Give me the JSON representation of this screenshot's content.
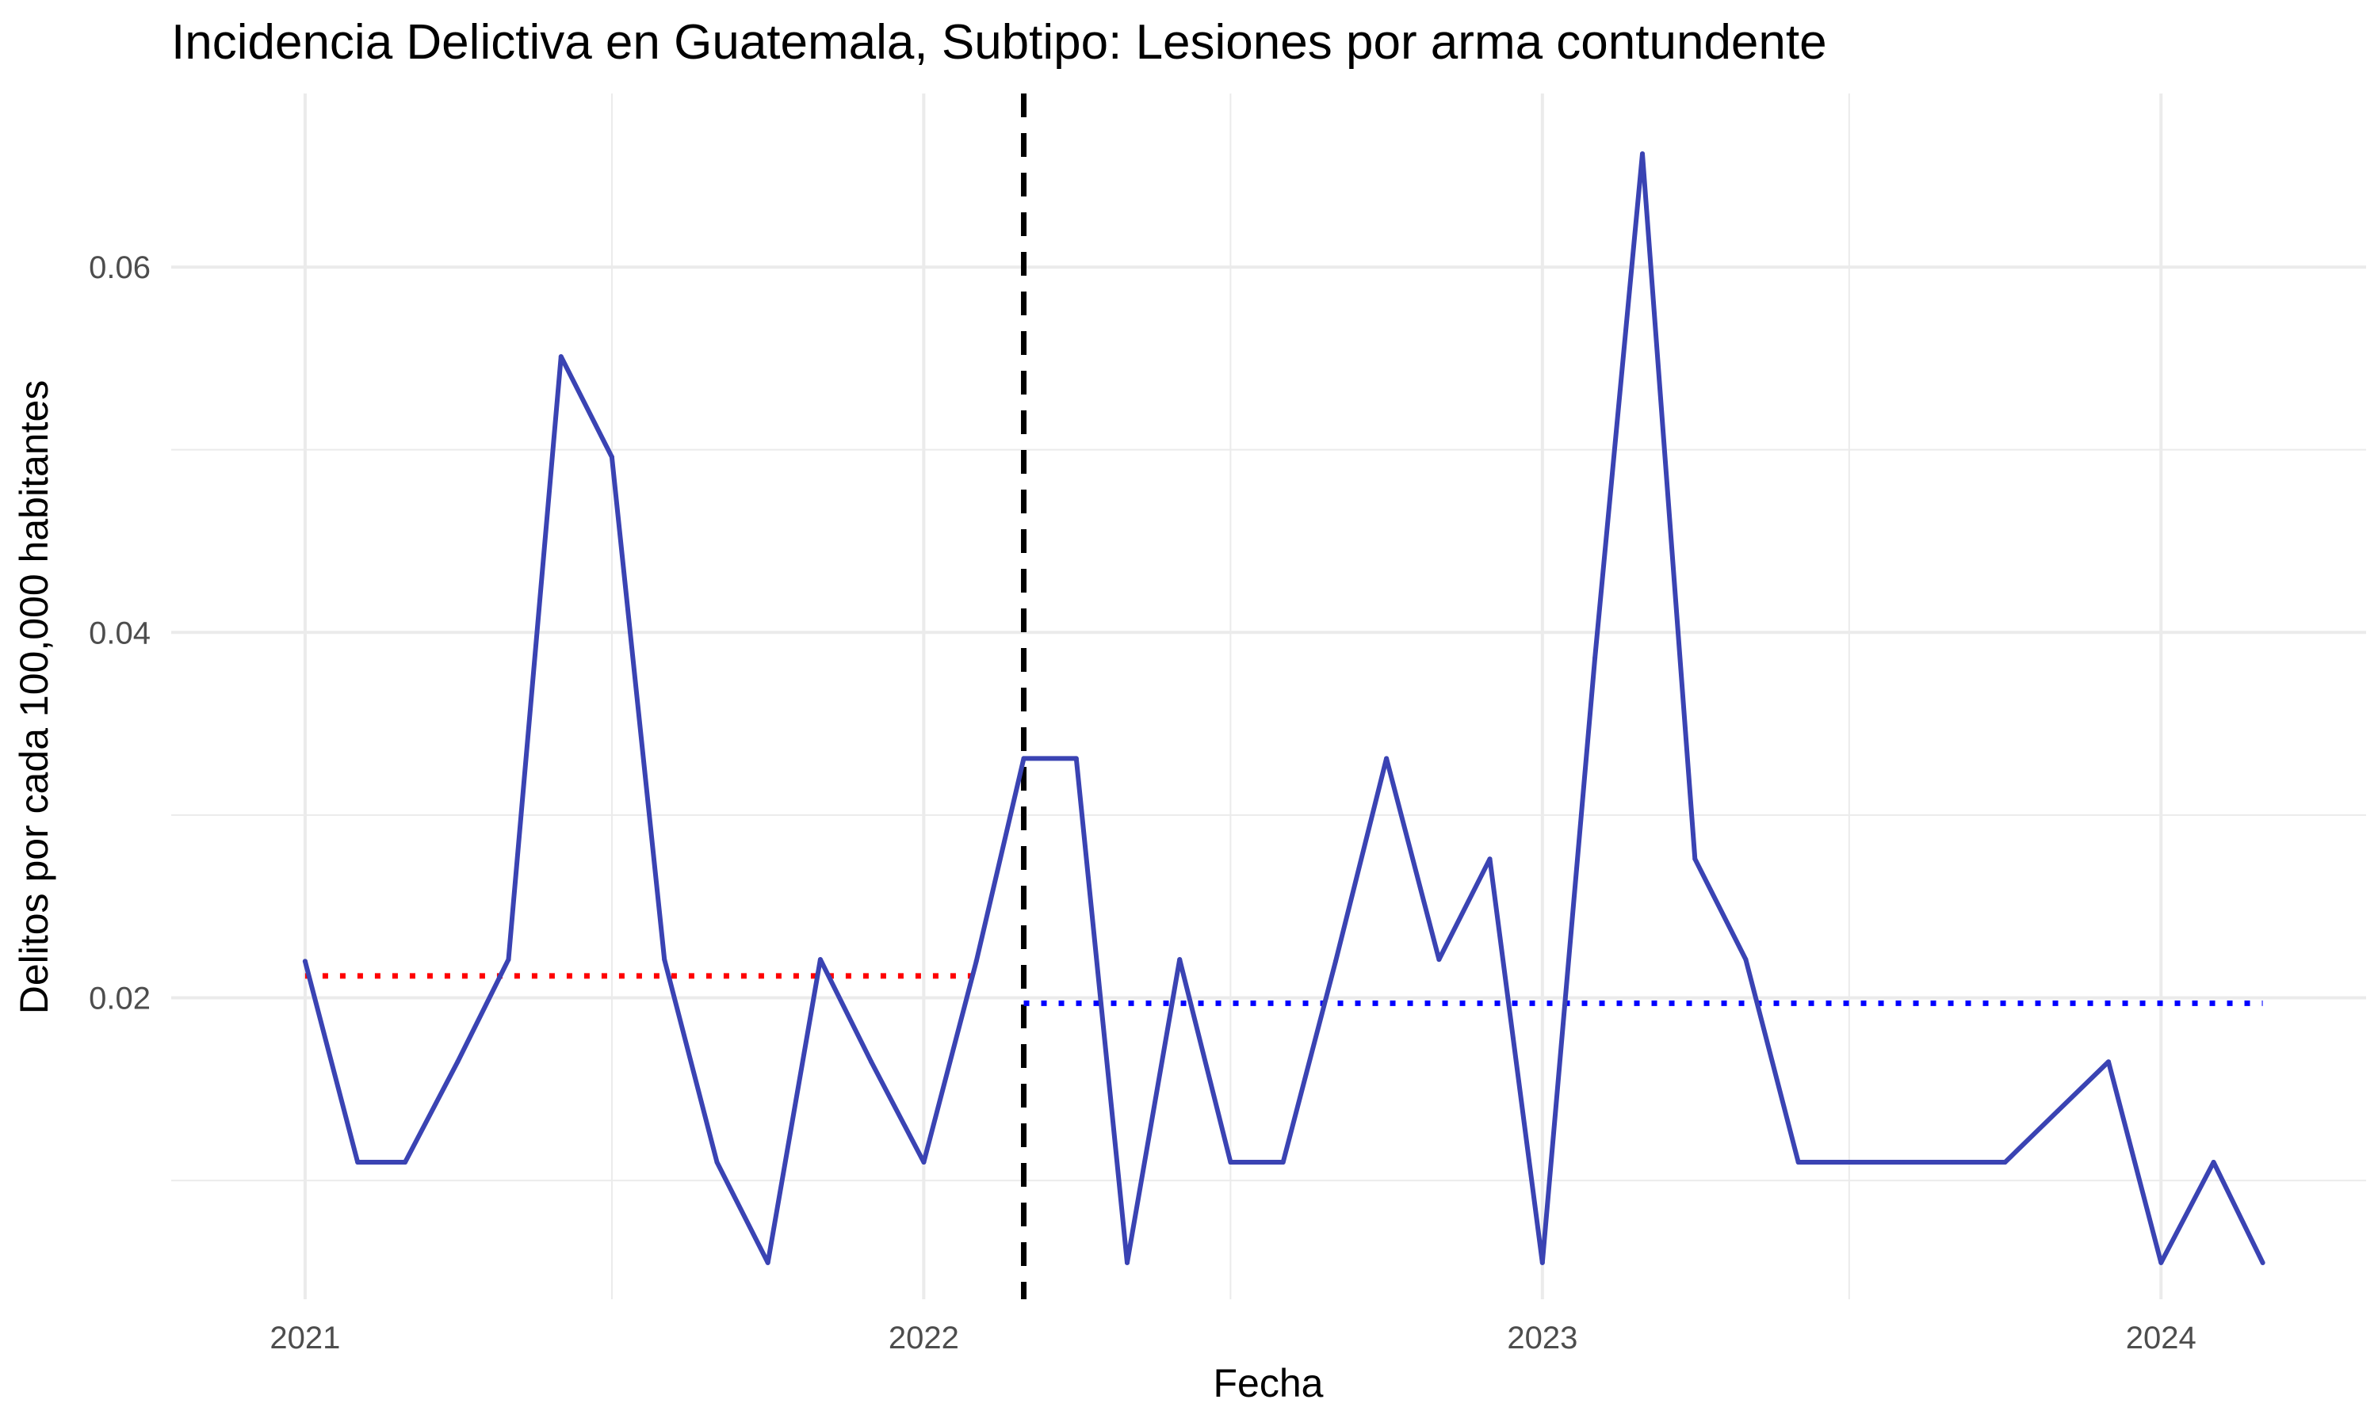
{
  "chart_data": {
    "type": "line",
    "title": "Incidencia Delictiva en Guatemala, Subtipo: Lesiones por arma contundente",
    "xlabel": "Fecha",
    "ylabel": "Delitos por cada 100,000 habitantes",
    "x_ticks": [
      "2021",
      "2022",
      "2023",
      "2024"
    ],
    "y_ticks": [
      "0.02",
      "0.04",
      "0.06"
    ],
    "xlim": [
      "2020-10-14",
      "2024-05-01"
    ],
    "ylim": [
      0.0035,
      0.0695
    ],
    "grid": true,
    "series": [
      {
        "color": "#3A43B3",
        "x": [
          "2021-01",
          "2021-02",
          "2021-03",
          "2021-04",
          "2021-05",
          "2021-06",
          "2021-07",
          "2021-08",
          "2021-09",
          "2021-10",
          "2021-11",
          "2021-12",
          "2022-01",
          "2022-02",
          "2022-03",
          "2022-04",
          "2022-05",
          "2022-06",
          "2022-07",
          "2022-08",
          "2022-09",
          "2022-10",
          "2022-11",
          "2022-12",
          "2023-01",
          "2023-02",
          "2023-03",
          "2023-04",
          "2023-05",
          "2023-06",
          "2023-07",
          "2023-08",
          "2023-09",
          "2023-10",
          "2023-11",
          "2023-12",
          "2024-01",
          "2024-02",
          "2024-03"
        ],
        "values": [
          0.022,
          0.011,
          0.011,
          0.0165,
          0.0221,
          0.0551,
          0.0496,
          0.0221,
          0.011,
          0.0055,
          0.0221,
          0.0165,
          0.011,
          0.022,
          0.0331,
          0.0331,
          0.0055,
          0.0221,
          0.011,
          0.011,
          0.022,
          0.0331,
          0.0221,
          0.0276,
          0.0055,
          0.0386,
          0.0662,
          0.0276,
          0.0221,
          0.011,
          0.011,
          0.011,
          0.011,
          0.011,
          0.0138,
          0.0165,
          0.0055,
          0.011,
          0.0055
        ]
      }
    ],
    "reference_lines": [
      {
        "type": "vertical",
        "x": "2022-03",
        "style": "dashed",
        "color": "#000000"
      },
      {
        "type": "horizontal",
        "y": 0.0212,
        "x_start": "2021-01",
        "x_end": "2022-02",
        "style": "dotted",
        "color": "#FF0000"
      },
      {
        "type": "horizontal",
        "y": 0.0197,
        "x_start": "2022-03",
        "x_end": "2024-03",
        "style": "dotted",
        "color": "#0000FF"
      }
    ]
  }
}
